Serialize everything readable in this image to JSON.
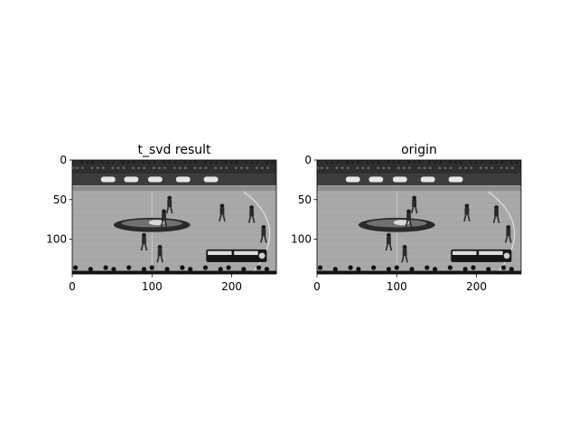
{
  "figure": {
    "background": "#ffffff"
  },
  "chart_data": [
    {
      "type": "image",
      "title": "t_svd result",
      "colormap": "gray",
      "image_extent": {
        "width": 256,
        "height": 144
      },
      "xlim": [
        0,
        256
      ],
      "ylim": [
        144,
        0
      ],
      "xticks": [
        0,
        100,
        200
      ],
      "yticks": [
        0,
        50,
        100
      ],
      "content": "grayscale basketball court frame (low-rank t-SVD reconstruction)"
    },
    {
      "type": "image",
      "title": "origin",
      "colormap": "gray",
      "image_extent": {
        "width": 256,
        "height": 144
      },
      "xlim": [
        0,
        256
      ],
      "ylim": [
        144,
        0
      ],
      "xticks": [
        0,
        100,
        200
      ],
      "yticks": [
        0,
        50,
        100
      ],
      "content": "grayscale basketball court frame (original)"
    }
  ]
}
